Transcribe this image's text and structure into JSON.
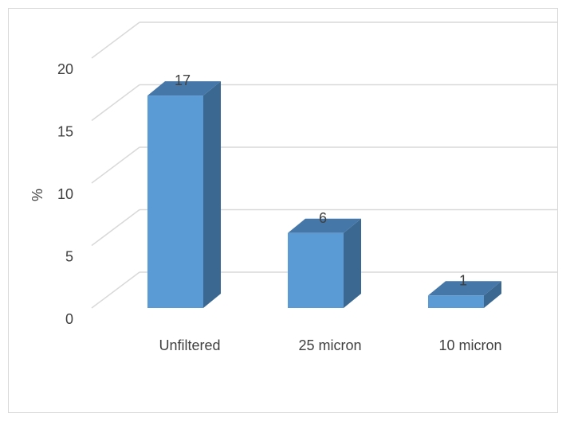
{
  "chart_data": {
    "type": "bar",
    "style": "3d-column",
    "title": "",
    "xlabel": "",
    "ylabel": "%",
    "categories": [
      "Unfiltered",
      "25 micron",
      "10 micron"
    ],
    "values": [
      17,
      6,
      1
    ],
    "data_labels": [
      "17",
      "6",
      "1"
    ],
    "ylim": [
      0,
      20
    ],
    "yticks": [
      0,
      5,
      10,
      15,
      20
    ],
    "ytick_labels": [
      "0",
      "5",
      "10",
      "15",
      "20"
    ],
    "grid": true,
    "legend": "none",
    "colors": {
      "bar_front": "#5b9bd5",
      "bar_side": "#3a6890",
      "bar_top": "#4577a8",
      "grid": "#d9d9d9",
      "text": "#404040"
    }
  }
}
